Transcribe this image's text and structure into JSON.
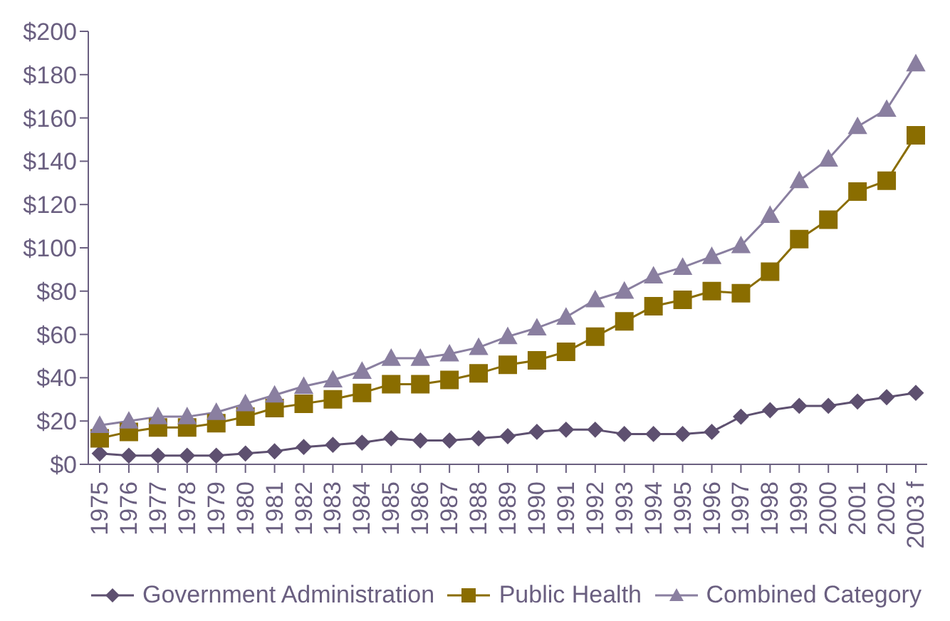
{
  "chart_data": {
    "type": "line",
    "categories": [
      "1975",
      "1976",
      "1977",
      "1978",
      "1979",
      "1980",
      "1981",
      "1982",
      "1983",
      "1984",
      "1985",
      "1986",
      "1987",
      "1988",
      "1989",
      "1990",
      "1991",
      "1992",
      "1993",
      "1994",
      "1995",
      "1996",
      "1997",
      "1998",
      "1999",
      "2000",
      "2001",
      "2002",
      "2003 f"
    ],
    "series": [
      {
        "name": "Government Administration",
        "color": "#5e5070",
        "marker": "diamond",
        "values": [
          5,
          4,
          4,
          4,
          4,
          5,
          6,
          8,
          9,
          10,
          12,
          11,
          11,
          12,
          13,
          15,
          16,
          16,
          14,
          14,
          14,
          15,
          22,
          25,
          27,
          27,
          29,
          31,
          33
        ]
      },
      {
        "name": "Public Health",
        "color": "#8a6d00",
        "marker": "square",
        "values": [
          12,
          15,
          17,
          17,
          19,
          22,
          26,
          28,
          30,
          33,
          37,
          37,
          39,
          42,
          46,
          48,
          52,
          59,
          66,
          73,
          76,
          80,
          79,
          89,
          104,
          113,
          126,
          131,
          152
        ]
      },
      {
        "name": "Combined Category",
        "color": "#8a7fa0",
        "marker": "triangle",
        "values": [
          18,
          20,
          22,
          22,
          24,
          28,
          32,
          36,
          39,
          43,
          49,
          49,
          51,
          54,
          59,
          63,
          68,
          76,
          80,
          87,
          91,
          96,
          101,
          115,
          131,
          141,
          156,
          164,
          185
        ]
      }
    ],
    "ylim": [
      0,
      200
    ],
    "yticks": [
      {
        "value": 0,
        "label": "$0"
      },
      {
        "value": 20,
        "label": "$20"
      },
      {
        "value": 40,
        "label": "$40"
      },
      {
        "value": 60,
        "label": "$60"
      },
      {
        "value": 80,
        "label": "$80"
      },
      {
        "value": 100,
        "label": "$100"
      },
      {
        "value": 120,
        "label": "$120"
      },
      {
        "value": 140,
        "label": "$140"
      },
      {
        "value": 160,
        "label": "$160"
      },
      {
        "value": 180,
        "label": "$180"
      },
      {
        "value": 200,
        "label": "$200"
      }
    ],
    "grid": false,
    "legend": "bottom"
  }
}
